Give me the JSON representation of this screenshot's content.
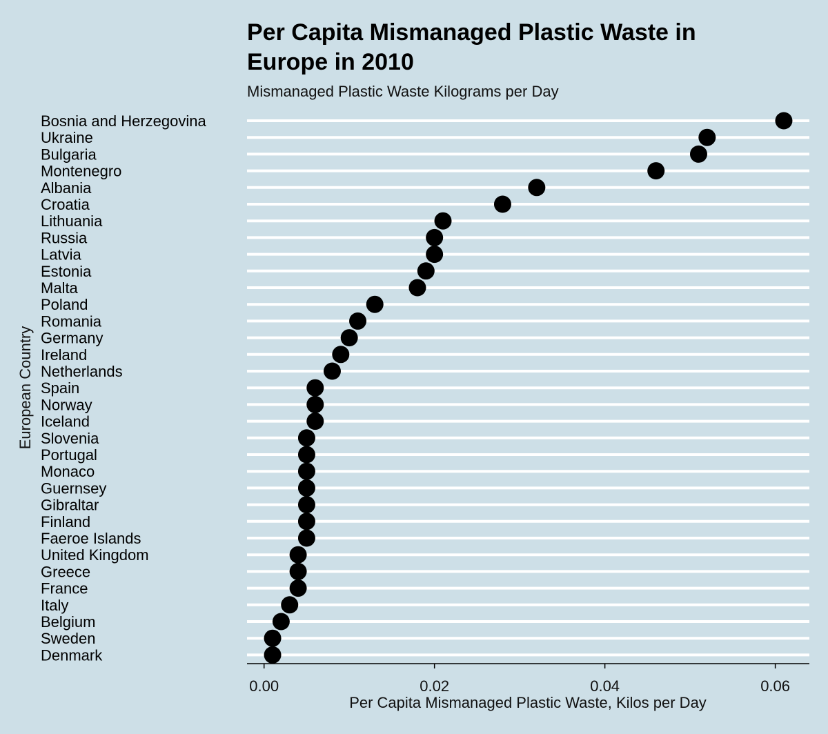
{
  "chart_data": {
    "type": "scatter",
    "title_line1": "Per Capita Mismanaged Plastic Waste in",
    "title_line2": "Europe in 2010",
    "subtitle": "Mismanaged Plastic Waste Kilograms per Day",
    "xlabel": "Per Capita Mismanaged Plastic Waste, Kilos per Day",
    "ylabel": "European Country",
    "xlim": [
      -0.002,
      0.064
    ],
    "xticks": [
      0.0,
      0.02,
      0.04,
      0.06
    ],
    "xtick_labels": [
      "0.00",
      "0.02",
      "0.04",
      "0.06"
    ],
    "grid": "horizontal",
    "point_color": "#000000",
    "grid_color": "#ffffff",
    "background_color": "#cddfe7",
    "categories": [
      "Bosnia and Herzegovina",
      "Ukraine",
      "Bulgaria",
      "Montenegro",
      "Albania",
      "Croatia",
      "Lithuania",
      "Russia",
      "Latvia",
      "Estonia",
      "Malta",
      "Poland",
      "Romania",
      "Germany",
      "Ireland",
      "Netherlands",
      "Spain",
      "Norway",
      "Iceland",
      "Slovenia",
      "Portugal",
      "Monaco",
      "Guernsey",
      "Gibraltar",
      "Finland",
      "Faeroe Islands",
      "United Kingdom",
      "Greece",
      "France",
      "Italy",
      "Belgium",
      "Sweden",
      "Denmark"
    ],
    "values": [
      0.061,
      0.052,
      0.051,
      0.046,
      0.032,
      0.028,
      0.021,
      0.02,
      0.02,
      0.019,
      0.018,
      0.013,
      0.011,
      0.01,
      0.009,
      0.008,
      0.006,
      0.006,
      0.006,
      0.005,
      0.005,
      0.005,
      0.005,
      0.005,
      0.005,
      0.005,
      0.004,
      0.004,
      0.004,
      0.003,
      0.002,
      0.001,
      0.001
    ]
  }
}
